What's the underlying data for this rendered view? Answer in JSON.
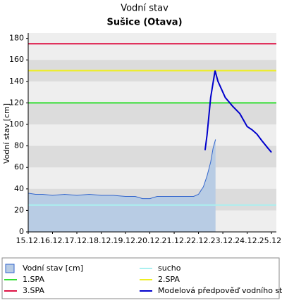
{
  "chart_data": {
    "type": "line",
    "title": "Vodní stav",
    "subtitle": "Sušice (Otava)",
    "y_label": "Vodní stav [cm]",
    "xlim": [
      0,
      10.2
    ],
    "ylim": [
      0,
      185
    ],
    "xticks": [
      {
        "value": 0,
        "label": "15.12."
      },
      {
        "value": 1,
        "label": "16.12."
      },
      {
        "value": 2,
        "label": "17.12."
      },
      {
        "value": 3,
        "label": "18.12."
      },
      {
        "value": 4,
        "label": "19.12."
      },
      {
        "value": 5,
        "label": "20.12."
      },
      {
        "value": 6,
        "label": "21.12."
      },
      {
        "value": 7,
        "label": "22.12."
      },
      {
        "value": 8,
        "label": "23.12."
      },
      {
        "value": 9,
        "label": "24.12."
      },
      {
        "value": 10,
        "label": "25.12."
      }
    ],
    "yticks": [
      0,
      20,
      40,
      60,
      80,
      100,
      120,
      140,
      160,
      180
    ],
    "grid": true,
    "series": [
      {
        "name": "Vodní stav [cm]",
        "kind": "area",
        "color": "#3366cc",
        "fill": "#b8cce4",
        "x": [
          0,
          0.3,
          0.6,
          1,
          1.5,
          2,
          2.5,
          3,
          3.5,
          4,
          4.4,
          4.7,
          5,
          5.3,
          5.6,
          6,
          6.4,
          6.8,
          7.0,
          7.2,
          7.35,
          7.5,
          7.6,
          7.7
        ],
        "values": [
          36,
          35,
          35,
          34,
          35,
          34,
          35,
          34,
          34,
          33,
          33,
          31,
          31,
          33,
          33,
          33,
          33,
          33,
          35,
          42,
          52,
          65,
          78,
          86
        ]
      },
      {
        "name": "sucho",
        "kind": "threshold",
        "color": "#aaf0f0",
        "value": 25
      },
      {
        "name": "1.SPA",
        "kind": "threshold",
        "color": "#33dd33",
        "value": 120
      },
      {
        "name": "2.SPA",
        "kind": "threshold",
        "color": "#eeee22",
        "value": 150
      },
      {
        "name": "3.SPA",
        "kind": "threshold",
        "color": "#dd1144",
        "value": 175
      },
      {
        "name": "Modelová předpověď vodního stavu",
        "kind": "line",
        "color": "#0000cc",
        "x": [
          7.27,
          7.35,
          7.5,
          7.68,
          7.8,
          8.1,
          8.4,
          8.7,
          9.0,
          9.2,
          9.4,
          9.6,
          9.85,
          10.0
        ],
        "values": [
          76,
          90,
          125,
          150,
          140,
          125,
          117,
          110,
          98,
          95,
          91,
          85,
          78,
          74
        ]
      }
    ]
  }
}
